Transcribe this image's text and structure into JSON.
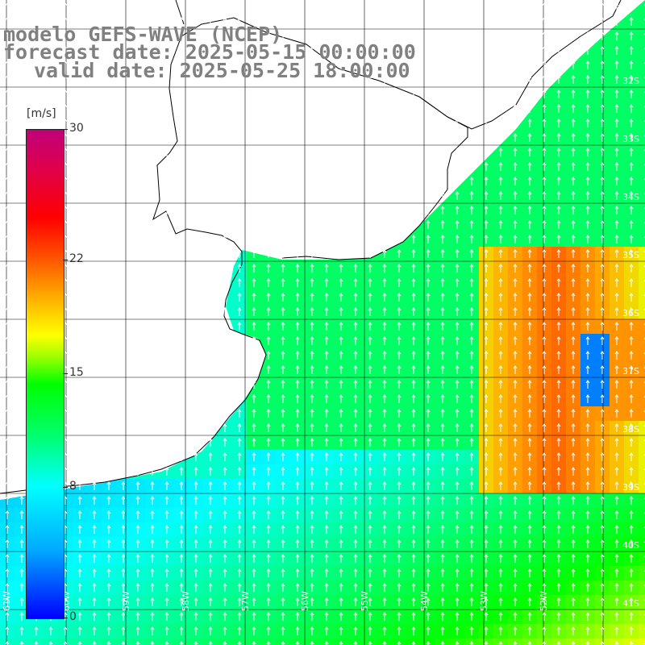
{
  "title": {
    "line1": "modelo GEFS-WAVE (NCEP)",
    "line2": "forecast date: 2025-05-15 00:00:00",
    "line3": "valid date: 2025-05-25 18:00:00"
  },
  "colorbar": {
    "unit": "[m/s]",
    "ticks": [
      "30",
      "22",
      "15",
      "8",
      "0"
    ],
    "tick_values": [
      30,
      22,
      15,
      8,
      0
    ],
    "min": 0,
    "max": 30
  },
  "lat_labels": [
    "32S",
    "33S",
    "34S",
    "35S",
    "36S",
    "37S",
    "38S",
    "39S",
    "40S",
    "41S"
  ],
  "lon_labels": [
    "61W",
    "60W",
    "59W",
    "58W",
    "57W",
    "56W",
    "55W",
    "54W",
    "53W",
    "52W"
  ],
  "colors": {
    "land": "#ffffff",
    "coast": "#000000",
    "grid": "#000000",
    "arrows": "#ffffff",
    "title": "#808080"
  }
}
